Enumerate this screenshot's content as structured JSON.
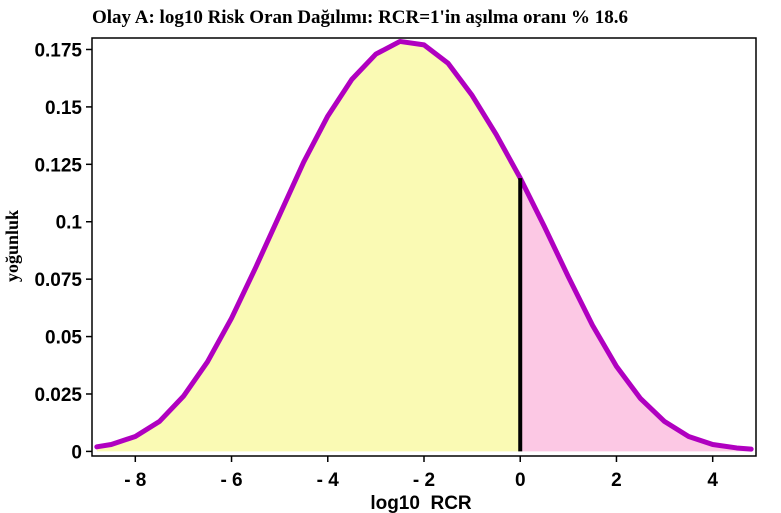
{
  "chart_data": {
    "type": "area",
    "title": "Olay A: log10 Risk Oran Dağılımı: RCR=1'in aşılma oranı % 18.6",
    "xlabel": "log10  RCR",
    "ylabel": "yoğunluk",
    "xlim": [
      -8.9,
      4.9
    ],
    "ylim": [
      -0.002,
      0.18
    ],
    "x_ticks": [
      -8,
      -6,
      -4,
      -2,
      0,
      2,
      4
    ],
    "x_tick_labels": [
      "- 8",
      "- 6",
      "- 4",
      "- 2",
      "0",
      "2",
      "4"
    ],
    "y_ticks": [
      0,
      0.025,
      0.05,
      0.075,
      0.1,
      0.125,
      0.15,
      0.175
    ],
    "y_tick_labels": [
      "0",
      "0.025",
      "0.05",
      "0.075",
      "0.1",
      "0.125",
      "0.15",
      "0.175"
    ],
    "threshold_x": 0,
    "exceedance_percent": 18.6,
    "grid": false,
    "series": [
      {
        "x": [
          -8.8,
          -8.5,
          -8.0,
          -7.5,
          -7.0,
          -6.5,
          -6.0,
          -5.5,
          -5.0,
          -4.5,
          -4.0,
          -3.5,
          -3.0,
          -2.5,
          -2.0,
          -1.5,
          -1.0,
          -0.5,
          0.0,
          0.5,
          1.0,
          1.5,
          2.0,
          2.5,
          3.0,
          3.5,
          4.0,
          4.5,
          4.8
        ],
        "y": [
          0.002,
          0.003,
          0.0065,
          0.013,
          0.024,
          0.039,
          0.058,
          0.08,
          0.103,
          0.126,
          0.146,
          0.162,
          0.173,
          0.1785,
          0.177,
          0.169,
          0.155,
          0.138,
          0.119,
          0.098,
          0.076,
          0.055,
          0.037,
          0.023,
          0.013,
          0.0065,
          0.003,
          0.0015,
          0.001
        ]
      }
    ],
    "colors": {
      "curve": "#b000c0",
      "fill_below": "#fafab4",
      "fill_above": "#fcc8e4",
      "threshold_line": "#000000"
    }
  }
}
